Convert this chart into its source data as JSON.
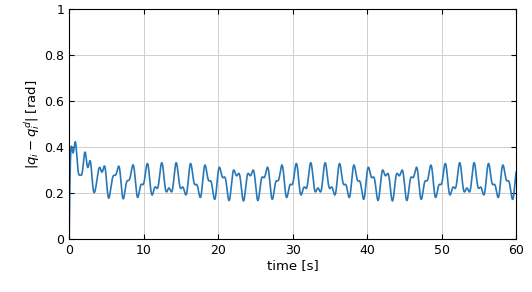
{
  "xlim": [
    0,
    60
  ],
  "ylim": [
    0,
    1
  ],
  "xticks": [
    0,
    10,
    20,
    30,
    40,
    50,
    60
  ],
  "yticks": [
    0,
    0.2,
    0.4,
    0.6,
    0.8,
    1
  ],
  "xlabel": "time [s]",
  "ylabel": "$|q_i - q_i^d|$ [rad]",
  "line_color": "#2878b8",
  "line_width": 1.2,
  "bg_color": "#ffffff",
  "grid_color": "#c8c8c8",
  "figsize": [
    5.32,
    2.92
  ],
  "dpi": 100,
  "signal_params": {
    "steady_mean": 0.25,
    "osc1_amp": 0.055,
    "osc1_freq": 0.5,
    "osc2_amp": 0.028,
    "osc2_freq": 1.05,
    "decay_amp": 0.2,
    "decay_rate": 0.55,
    "peak_time": 1.8,
    "rise_rate": 6.0
  }
}
